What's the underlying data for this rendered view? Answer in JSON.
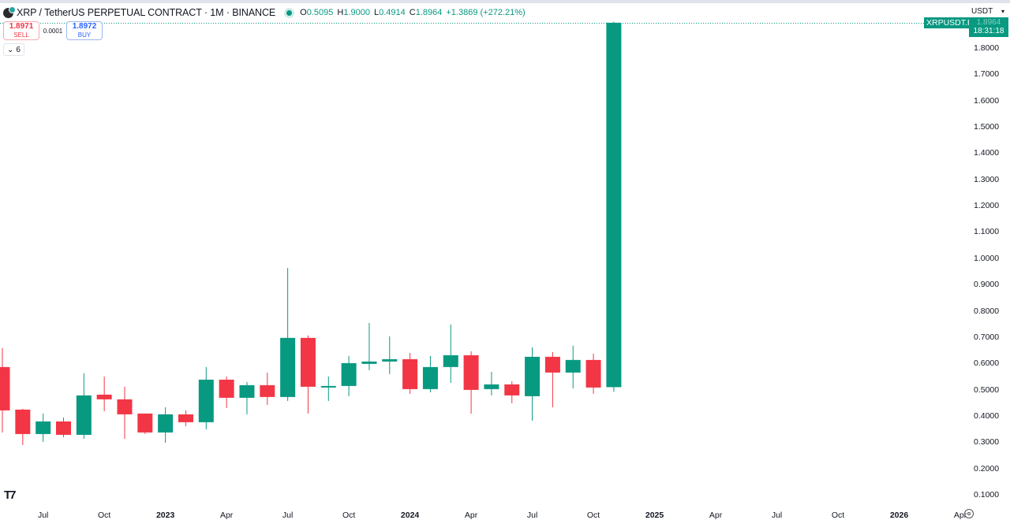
{
  "header": {
    "symbol_title": "XRP / TetherUS PERPETUAL CONTRACT · 1M · BINANCE",
    "ohlc": {
      "o_label": "O",
      "o": "0.5095",
      "h_label": "H",
      "h": "1.9000",
      "l_label": "L",
      "l": "0.4914",
      "c_label": "C",
      "c": "1.8964",
      "change": "+1.3869 (+272.21%)"
    }
  },
  "trade": {
    "sell_price": "1.8971",
    "sell_label": "SELL",
    "spread": "0.0001",
    "buy_price": "1.8972",
    "buy_label": "BUY"
  },
  "indicators_toggle": {
    "count": "6"
  },
  "currency_select": {
    "value": "USDT"
  },
  "price_tag": {
    "symbol": "XRPUSDT.P",
    "price": "1.8964",
    "countdown": "18:31:18"
  },
  "colors": {
    "up": "#089981",
    "down": "#f23645"
  },
  "chart_data": {
    "type": "candlestick",
    "title": "XRP / TetherUS PERPETUAL CONTRACT · 1M · BINANCE",
    "interval": "1M",
    "xlabel": "",
    "ylabel": "USDT",
    "ylim": [
      0.08,
      1.92
    ],
    "grid": false,
    "y_ticks": [
      "1.8000",
      "1.7000",
      "1.6000",
      "1.5000",
      "1.4000",
      "1.3000",
      "1.2000",
      "1.1000",
      "1.0000",
      "0.9000",
      "0.8000",
      "0.7000",
      "0.6000",
      "0.5000",
      "0.4000",
      "0.3000",
      "0.2000",
      "0.1000"
    ],
    "x_ticks": [
      {
        "label": "Jul",
        "bold": false
      },
      {
        "label": "Oct",
        "bold": false
      },
      {
        "label": "2023",
        "bold": true
      },
      {
        "label": "Apr",
        "bold": false
      },
      {
        "label": "Jul",
        "bold": false
      },
      {
        "label": "Oct",
        "bold": false
      },
      {
        "label": "2024",
        "bold": true
      },
      {
        "label": "Apr",
        "bold": false
      },
      {
        "label": "Jul",
        "bold": false
      },
      {
        "label": "Oct",
        "bold": false
      },
      {
        "label": "2025",
        "bold": true
      },
      {
        "label": "Apr",
        "bold": false
      },
      {
        "label": "Jul",
        "bold": false
      },
      {
        "label": "Oct",
        "bold": false
      },
      {
        "label": "2026",
        "bold": true
      },
      {
        "label": "Apr",
        "bold": false
      }
    ],
    "candles": [
      {
        "date": "2022-05",
        "open": 0.586,
        "high": 0.658,
        "low": 0.337,
        "close": 0.421
      },
      {
        "date": "2022-06",
        "open": 0.424,
        "high": 0.427,
        "low": 0.289,
        "close": 0.331
      },
      {
        "date": "2022-07",
        "open": 0.331,
        "high": 0.409,
        "low": 0.301,
        "close": 0.379
      },
      {
        "date": "2022-08",
        "open": 0.379,
        "high": 0.394,
        "low": 0.319,
        "close": 0.328
      },
      {
        "date": "2022-09",
        "open": 0.328,
        "high": 0.562,
        "low": 0.313,
        "close": 0.478
      },
      {
        "date": "2022-10",
        "open": 0.481,
        "high": 0.55,
        "low": 0.418,
        "close": 0.463
      },
      {
        "date": "2022-11",
        "open": 0.463,
        "high": 0.511,
        "low": 0.313,
        "close": 0.406
      },
      {
        "date": "2022-12",
        "open": 0.409,
        "high": 0.409,
        "low": 0.331,
        "close": 0.337
      },
      {
        "date": "2023-01",
        "open": 0.337,
        "high": 0.433,
        "low": 0.298,
        "close": 0.406
      },
      {
        "date": "2023-02",
        "open": 0.406,
        "high": 0.421,
        "low": 0.361,
        "close": 0.376
      },
      {
        "date": "2023-03",
        "open": 0.376,
        "high": 0.586,
        "low": 0.349,
        "close": 0.538
      },
      {
        "date": "2023-04",
        "open": 0.538,
        "high": 0.55,
        "low": 0.43,
        "close": 0.469
      },
      {
        "date": "2023-05",
        "open": 0.469,
        "high": 0.529,
        "low": 0.406,
        "close": 0.517
      },
      {
        "date": "2023-06",
        "open": 0.517,
        "high": 0.565,
        "low": 0.442,
        "close": 0.472
      },
      {
        "date": "2023-07",
        "open": 0.472,
        "high": 0.963,
        "low": 0.457,
        "close": 0.697
      },
      {
        "date": "2023-08",
        "open": 0.697,
        "high": 0.706,
        "low": 0.409,
        "close": 0.511
      },
      {
        "date": "2023-09",
        "open": 0.508,
        "high": 0.55,
        "low": 0.457,
        "close": 0.514
      },
      {
        "date": "2023-10",
        "open": 0.514,
        "high": 0.628,
        "low": 0.475,
        "close": 0.601
      },
      {
        "date": "2023-11",
        "open": 0.598,
        "high": 0.754,
        "low": 0.574,
        "close": 0.607
      },
      {
        "date": "2023-12",
        "open": 0.607,
        "high": 0.703,
        "low": 0.559,
        "close": 0.616
      },
      {
        "date": "2024-01",
        "open": 0.616,
        "high": 0.64,
        "low": 0.484,
        "close": 0.502
      },
      {
        "date": "2024-02",
        "open": 0.502,
        "high": 0.628,
        "low": 0.49,
        "close": 0.586
      },
      {
        "date": "2024-03",
        "open": 0.586,
        "high": 0.748,
        "low": 0.526,
        "close": 0.631
      },
      {
        "date": "2024-04",
        "open": 0.631,
        "high": 0.646,
        "low": 0.409,
        "close": 0.499
      },
      {
        "date": "2024-05",
        "open": 0.502,
        "high": 0.568,
        "low": 0.478,
        "close": 0.52
      },
      {
        "date": "2024-06",
        "open": 0.52,
        "high": 0.532,
        "low": 0.448,
        "close": 0.478
      },
      {
        "date": "2024-07",
        "open": 0.475,
        "high": 0.661,
        "low": 0.382,
        "close": 0.625
      },
      {
        "date": "2024-08",
        "open": 0.625,
        "high": 0.643,
        "low": 0.433,
        "close": 0.565
      },
      {
        "date": "2024-09",
        "open": 0.565,
        "high": 0.667,
        "low": 0.505,
        "close": 0.613
      },
      {
        "date": "2024-10",
        "open": 0.613,
        "high": 0.637,
        "low": 0.484,
        "close": 0.508
      },
      {
        "date": "2024-11",
        "open": 0.5095,
        "high": 1.9,
        "low": 0.4914,
        "close": 1.8964
      }
    ],
    "last_price": 1.8964
  }
}
